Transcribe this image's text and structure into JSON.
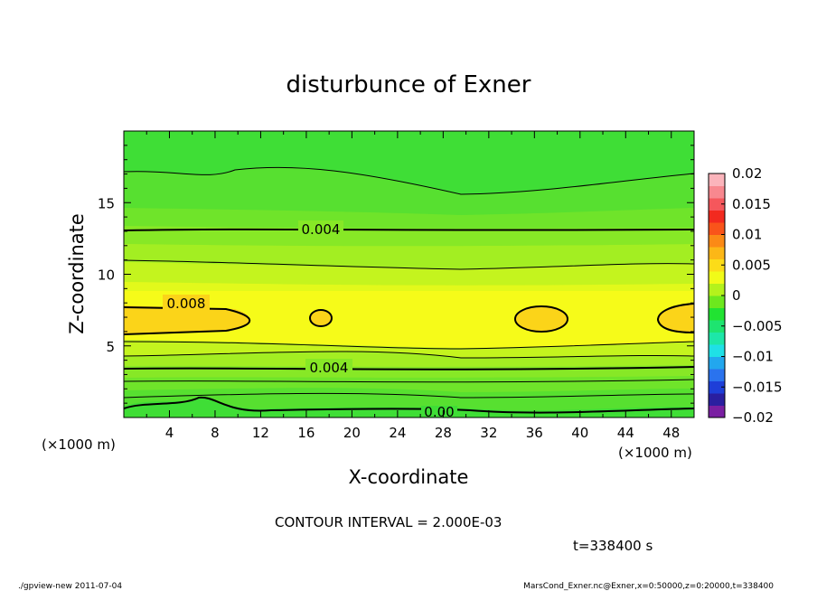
{
  "chart_data": {
    "type": "heatmap",
    "title": "disturbunce of Exner",
    "xlabel": "X-coordinate",
    "ylabel": "Z-coordinate",
    "x_unit": "(×1000 m)",
    "y_unit": "(×1000 m)",
    "xlim": [
      0,
      50
    ],
    "ylim": [
      0,
      20
    ],
    "x_ticks": [
      4,
      8,
      12,
      16,
      20,
      24,
      28,
      32,
      36,
      40,
      44,
      48
    ],
    "y_ticks": [
      5,
      10,
      15
    ],
    "colorbar": {
      "range": [
        -0.02,
        0.02
      ],
      "tick_labels": [
        "0.02",
        "0.015",
        "0.01",
        "0.005",
        "0",
        "−0.005",
        "−0.01",
        "−0.015",
        "−0.02"
      ],
      "colors": [
        "#7a1fa2",
        "#2a1fa0",
        "#1e3fd8",
        "#2a73ee",
        "#22a7ee",
        "#1fe0e6",
        "#1de7a8",
        "#1ee470",
        "#21e332",
        "#6de81e",
        "#b4f21c",
        "#f1fb18",
        "#fcdc18",
        "#fcb717",
        "#fb8a16",
        "#f9541a",
        "#f22a1f",
        "#f5575c",
        "#f8888f",
        "#fbb4bb"
      ]
    },
    "contour_labels": [
      "0.004",
      "0.008",
      "0.004",
      "0.00"
    ],
    "contour_interval_text": "CONTOUR INTERVAL = 2.000E-03",
    "time_text": "t=338400 s"
  },
  "footer": {
    "left": "./gpview-new   2011-07-04",
    "right": "MarsCond_Exner.nc@Exner,x=0:50000,z=0:20000,t=338400"
  }
}
